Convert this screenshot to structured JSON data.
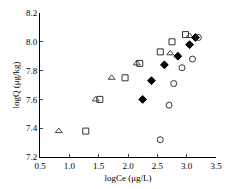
{
  "chart_data": {
    "type": "scatter",
    "xlabel": "logCe (μg/L)",
    "ylabel": "logQ (μg/kg)",
    "xlim": [
      0.5,
      3.5
    ],
    "xticks": [
      0.5,
      {
        "value": 1,
        "label": "1.0"
      },
      1.5,
      {
        "value": 2,
        "label": "2.0"
      },
      2.5,
      {
        "value": 3,
        "label": "3.0"
      },
      3.5
    ],
    "ylim": [
      7.2,
      8.2
    ],
    "yticks": [
      7.2,
      7.4,
      7.6,
      7.8,
      {
        "value": 8,
        "label": "8.0"
      },
      8.2
    ],
    "grid": false,
    "series": [
      {
        "color": "#444444",
        "marker": "triangle-open",
        "x": [
          0.82,
          1.45,
          1.72,
          2.15,
          2.72,
          3.05
        ],
        "values": [
          7.38,
          7.6,
          7.75,
          7.85,
          7.92,
          8.04
        ]
      },
      {
        "color": "#333333",
        "marker": "square-open",
        "x": [
          1.28,
          1.52,
          1.95,
          2.2,
          2.55,
          2.75,
          2.98
        ],
        "values": [
          7.38,
          7.6,
          7.75,
          7.85,
          7.93,
          8.0,
          8.05
        ]
      },
      {
        "color": "#000000",
        "marker": "diamond",
        "x": [
          2.25,
          2.4,
          2.62,
          2.85,
          3.05,
          3.15
        ],
        "values": [
          7.6,
          7.73,
          7.84,
          7.9,
          7.98,
          8.03
        ]
      },
      {
        "color": "#333333",
        "marker": "circle-open",
        "x": [
          2.55,
          2.7,
          2.78,
          2.92,
          3.1,
          3.2
        ],
        "values": [
          7.32,
          7.56,
          7.71,
          7.82,
          7.88,
          8.03
        ]
      }
    ]
  }
}
